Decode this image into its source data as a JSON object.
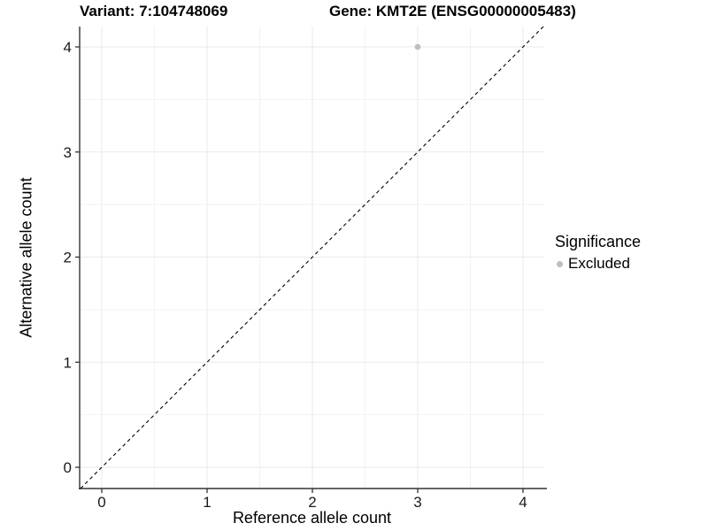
{
  "header": {
    "title_left": "Variant: 7:104748069",
    "title_right": "Gene: KMT2E (ENSG00000005483)"
  },
  "axes": {
    "x_label": "Reference allele count",
    "y_label": "Alternative allele count"
  },
  "legend": {
    "title": "Significance",
    "items": [
      {
        "label": "Excluded",
        "color": "#bebebe"
      }
    ]
  },
  "chart_data": {
    "type": "scatter",
    "title": "Variant: 7:104748069 | Gene: KMT2E (ENSG00000005483)",
    "xlabel": "Reference allele count",
    "ylabel": "Alternative allele count",
    "xlim": [
      -0.21,
      4.2
    ],
    "ylim": [
      -0.2,
      4.19
    ],
    "x_ticks": [
      0,
      1,
      2,
      3,
      4
    ],
    "y_ticks": [
      0,
      1,
      2,
      3,
      4
    ],
    "grid": {
      "show": true,
      "major_step": 1,
      "minor_step": 0.5
    },
    "series": [
      {
        "name": "Excluded",
        "color": "#bebebe",
        "points": [
          {
            "x": 3,
            "y": 4
          }
        ]
      }
    ],
    "reference_line": {
      "kind": "identity",
      "slope": 1,
      "intercept": 0,
      "style": "dashed",
      "color": "#000000"
    },
    "legend_position": "right",
    "legend_title": "Significance"
  },
  "colors": {
    "point_excluded": "#bebebe",
    "grid_major": "#e9e9e9",
    "grid_minor": "#f2f2f2",
    "axis_line": "#333333",
    "tick_text": "#1a1a1a",
    "dashed_line": "#000000",
    "background": "#ffffff"
  }
}
